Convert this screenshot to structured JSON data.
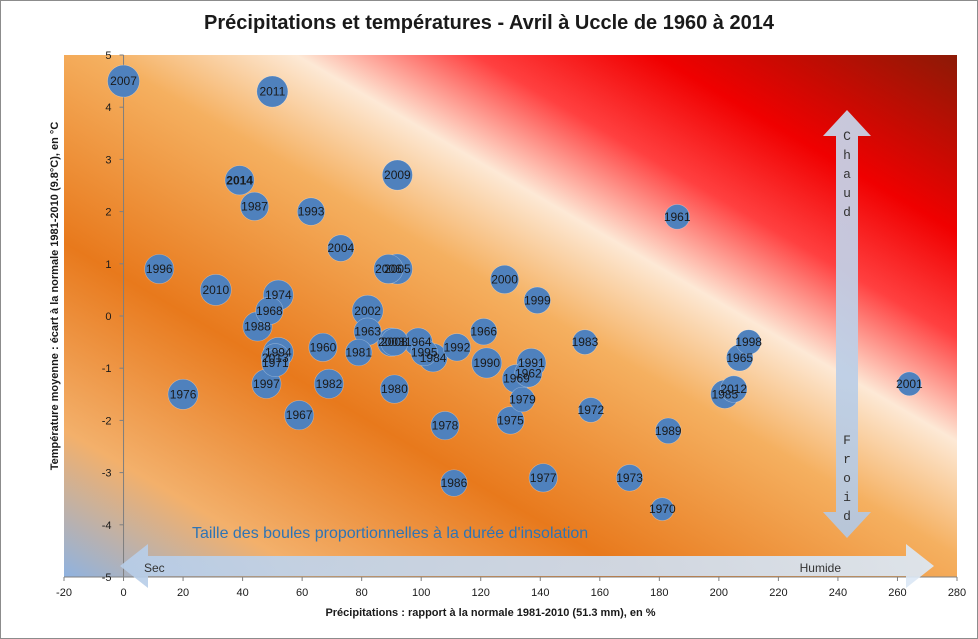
{
  "chart_data": {
    "type": "scatter",
    "title": "Précipitations et températures - Avril à Uccle de 1960 à 2014",
    "xlabel": "Précipitations : rapport à la normale 1981-2010 (51.3 mm), en %",
    "ylabel": "Température moyenne : écart à la normale 1981-2010 (9.8°C), en °C",
    "xlim": [
      -20,
      280
    ],
    "ylim": [
      -5,
      5
    ],
    "x_ticks": [
      "-20",
      "0",
      "20",
      "40",
      "60",
      "80",
      "100",
      "120",
      "140",
      "160",
      "180",
      "200",
      "220",
      "240",
      "260",
      "280"
    ],
    "y_ticks": [
      "-5",
      "-4",
      "-3",
      "-2",
      "-1",
      "0",
      "1",
      "2",
      "3",
      "4",
      "5"
    ],
    "annotation": "Taille des boules proportionnelles  à la durée d'insolation",
    "arrow_dry_label": "Sec",
    "arrow_wet_label": "Humide",
    "arrow_warm_label": "Chaud",
    "arrow_cold_label": "Froid",
    "highlight_year": "2014",
    "highlight_color": "#ffff00",
    "bubble_color": "#4f81bd",
    "points": [
      {
        "label": "2007",
        "x": 0,
        "y": 4.5,
        "size": 1.0
      },
      {
        "label": "2011",
        "x": 50,
        "y": 4.3,
        "size": 0.95
      },
      {
        "label": "2014",
        "x": 39,
        "y": 2.6,
        "size": 0.85
      },
      {
        "label": "2009",
        "x": 92,
        "y": 2.7,
        "size": 0.9
      },
      {
        "label": "1987",
        "x": 44,
        "y": 2.1,
        "size": 0.8
      },
      {
        "label": "1993",
        "x": 63,
        "y": 2.0,
        "size": 0.75
      },
      {
        "label": "1961",
        "x": 186,
        "y": 1.9,
        "size": 0.6
      },
      {
        "label": "2004",
        "x": 73,
        "y": 1.3,
        "size": 0.7
      },
      {
        "label": "1996",
        "x": 12,
        "y": 0.9,
        "size": 0.85
      },
      {
        "label": "2006",
        "x": 89,
        "y": 0.9,
        "size": 0.85
      },
      {
        "label": "2005",
        "x": 92,
        "y": 0.9,
        "size": 0.9
      },
      {
        "label": "2000",
        "x": 128,
        "y": 0.7,
        "size": 0.8
      },
      {
        "label": "2010",
        "x": 31,
        "y": 0.5,
        "size": 0.95
      },
      {
        "label": "1974",
        "x": 52,
        "y": 0.4,
        "size": 0.9
      },
      {
        "label": "1999",
        "x": 139,
        "y": 0.3,
        "size": 0.7
      },
      {
        "label": "1968",
        "x": 49,
        "y": 0.1,
        "size": 0.75
      },
      {
        "label": "2002",
        "x": 82,
        "y": 0.1,
        "size": 0.95
      },
      {
        "label": "1988",
        "x": 45,
        "y": -0.2,
        "size": 0.85
      },
      {
        "label": "1963",
        "x": 82,
        "y": -0.3,
        "size": 0.75
      },
      {
        "label": "1966",
        "x": 121,
        "y": -0.3,
        "size": 0.7
      },
      {
        "label": "2003",
        "x": 90,
        "y": -0.5,
        "size": 0.8
      },
      {
        "label": "2008",
        "x": 91,
        "y": -0.5,
        "size": 0.75
      },
      {
        "label": "1964",
        "x": 99,
        "y": -0.5,
        "size": 0.8
      },
      {
        "label": "1983",
        "x": 155,
        "y": -0.5,
        "size": 0.6
      },
      {
        "label": "1998",
        "x": 210,
        "y": -0.5,
        "size": 0.6
      },
      {
        "label": "1960",
        "x": 67,
        "y": -0.6,
        "size": 0.8
      },
      {
        "label": "1992",
        "x": 112,
        "y": -0.6,
        "size": 0.75
      },
      {
        "label": "1994",
        "x": 52,
        "y": -0.7,
        "size": 0.9
      },
      {
        "label": "1981",
        "x": 79,
        "y": -0.7,
        "size": 0.7
      },
      {
        "label": "1995",
        "x": 101,
        "y": -0.7,
        "size": 0.7
      },
      {
        "label": "1984",
        "x": 104,
        "y": -0.8,
        "size": 0.8
      },
      {
        "label": "1965",
        "x": 207,
        "y": -0.8,
        "size": 0.7
      },
      {
        "label": "2013",
        "x": 51,
        "y": -0.8,
        "size": 0.8
      },
      {
        "label": "1971",
        "x": 51,
        "y": -0.9,
        "size": 0.75
      },
      {
        "label": "1990",
        "x": 122,
        "y": -0.9,
        "size": 0.9
      },
      {
        "label": "1991",
        "x": 137,
        "y": -0.9,
        "size": 0.85
      },
      {
        "label": "1962",
        "x": 136,
        "y": -1.1,
        "size": 0.75
      },
      {
        "label": "1969",
        "x": 132,
        "y": -1.2,
        "size": 0.8
      },
      {
        "label": "1997",
        "x": 48,
        "y": -1.3,
        "size": 0.85
      },
      {
        "label": "1982",
        "x": 69,
        "y": -1.3,
        "size": 0.85
      },
      {
        "label": "1980",
        "x": 91,
        "y": -1.4,
        "size": 0.8
      },
      {
        "label": "2012",
        "x": 205,
        "y": -1.4,
        "size": 0.7
      },
      {
        "label": "1985",
        "x": 202,
        "y": -1.5,
        "size": 0.8
      },
      {
        "label": "2001",
        "x": 264,
        "y": -1.3,
        "size": 0.55
      },
      {
        "label": "1976",
        "x": 20,
        "y": -1.5,
        "size": 0.9
      },
      {
        "label": "1979",
        "x": 134,
        "y": -1.6,
        "size": 0.6
      },
      {
        "label": "1972",
        "x": 157,
        "y": -1.8,
        "size": 0.6
      },
      {
        "label": "1967",
        "x": 59,
        "y": -1.9,
        "size": 0.85
      },
      {
        "label": "1975",
        "x": 130,
        "y": -2.0,
        "size": 0.75
      },
      {
        "label": "1978",
        "x": 108,
        "y": -2.1,
        "size": 0.8
      },
      {
        "label": "1989",
        "x": 183,
        "y": -2.2,
        "size": 0.65
      },
      {
        "label": "1973",
        "x": 170,
        "y": -3.1,
        "size": 0.7
      },
      {
        "label": "1977",
        "x": 141,
        "y": -3.1,
        "size": 0.8
      },
      {
        "label": "1986",
        "x": 111,
        "y": -3.2,
        "size": 0.7
      },
      {
        "label": "1970",
        "x": 181,
        "y": -3.7,
        "size": 0.5
      }
    ]
  }
}
